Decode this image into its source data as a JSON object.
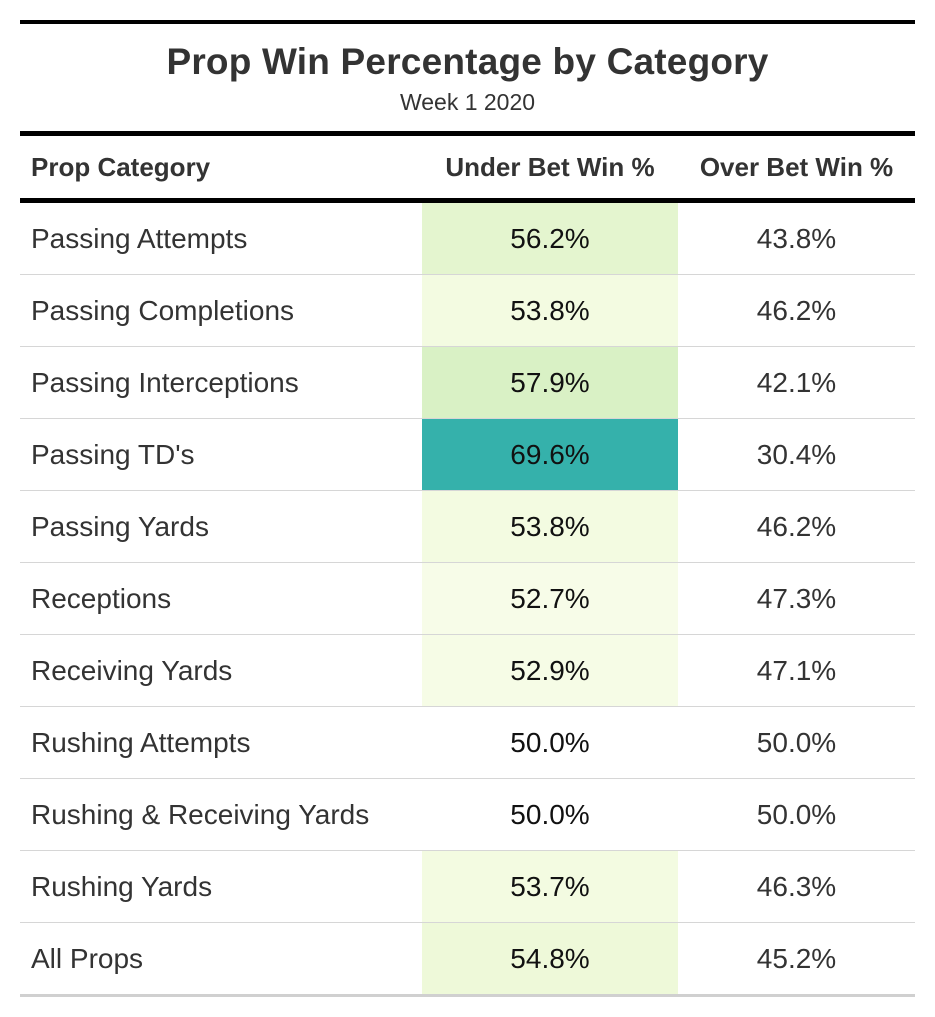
{
  "title": "Prop Win Percentage by Category",
  "subtitle": "Week 1 2020",
  "columns": [
    "Prop Category",
    "Under Bet Win %",
    "Over Bet Win %"
  ],
  "rows": [
    {
      "category": "Passing Attempts",
      "under": "56.2%",
      "over": "43.8%",
      "under_color": "#e4f5cf"
    },
    {
      "category": "Passing Completions",
      "under": "53.8%",
      "over": "46.2%",
      "under_color": "#f3fbe1"
    },
    {
      "category": "Passing Interceptions",
      "under": "57.9%",
      "over": "42.1%",
      "under_color": "#d9f1c5"
    },
    {
      "category": "Passing TD's",
      "under": "69.6%",
      "over": "30.4%",
      "under_color": "#35b1ab"
    },
    {
      "category": "Passing Yards",
      "under": "53.8%",
      "over": "46.2%",
      "under_color": "#f3fbe1"
    },
    {
      "category": "Receptions",
      "under": "52.7%",
      "over": "47.3%",
      "under_color": "#f7fce8"
    },
    {
      "category": "Receiving Yards",
      "under": "52.9%",
      "over": "47.1%",
      "under_color": "#f6fce6"
    },
    {
      "category": "Rushing Attempts",
      "under": "50.0%",
      "over": "50.0%",
      "under_color": "#ffffff"
    },
    {
      "category": "Rushing & Receiving Yards",
      "under": "50.0%",
      "over": "50.0%",
      "under_color": "#ffffff"
    },
    {
      "category": "Rushing Yards",
      "under": "53.7%",
      "over": "46.3%",
      "under_color": "#f3fbe1"
    },
    {
      "category": "All Props",
      "under": "54.8%",
      "over": "45.2%",
      "under_color": "#eef9d9"
    }
  ],
  "chart_data": {
    "type": "table",
    "title": "Prop Win Percentage by Category",
    "subtitle": "Week 1 2020",
    "columns": [
      "Prop Category",
      "Under Bet Win %",
      "Over Bet Win %"
    ],
    "categories": [
      "Passing Attempts",
      "Passing Completions",
      "Passing Interceptions",
      "Passing TD's",
      "Passing Yards",
      "Receptions",
      "Receiving Yards",
      "Rushing Attempts",
      "Rushing & Receiving Yards",
      "Rushing Yards",
      "All Props"
    ],
    "series": [
      {
        "name": "Under Bet Win %",
        "values": [
          56.2,
          53.8,
          57.9,
          69.6,
          53.8,
          52.7,
          52.9,
          50.0,
          50.0,
          53.7,
          54.8
        ]
      },
      {
        "name": "Over Bet Win %",
        "values": [
          43.8,
          46.2,
          42.1,
          30.4,
          46.2,
          47.3,
          47.1,
          50.0,
          50.0,
          46.3,
          45.2
        ]
      }
    ]
  }
}
